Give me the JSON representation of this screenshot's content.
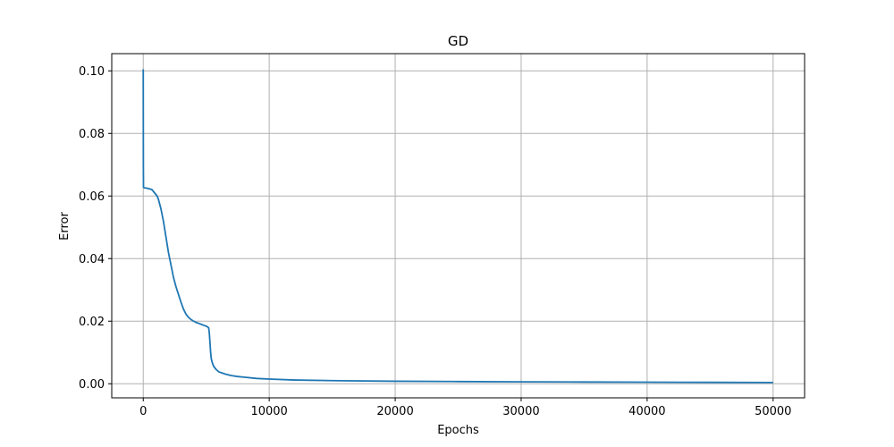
{
  "chart_data": {
    "type": "line",
    "title": "GD",
    "xlabel": "Epochs",
    "ylabel": "Error",
    "xlim": [
      -2500,
      52500
    ],
    "ylim": [
      -0.0045,
      0.1055
    ],
    "xticks": [
      0,
      10000,
      20000,
      30000,
      40000,
      50000
    ],
    "xtick_labels": [
      "0",
      "10000",
      "20000",
      "30000",
      "40000",
      "50000"
    ],
    "yticks": [
      0.0,
      0.02,
      0.04,
      0.06,
      0.08,
      0.1
    ],
    "ytick_labels": [
      "0.00",
      "0.02",
      "0.04",
      "0.06",
      "0.08",
      "0.10"
    ],
    "grid": true,
    "series": [
      {
        "color": "#1f77b4",
        "x": [
          0,
          5,
          10,
          20,
          50,
          100,
          300,
          500,
          700,
          900,
          1000,
          1100,
          1200,
          1400,
          1600,
          1800,
          2000,
          2200,
          2400,
          2600,
          2800,
          3000,
          3200,
          3400,
          3600,
          3800,
          4000,
          4200,
          4400,
          4600,
          4800,
          5000,
          5100,
          5200,
          5250,
          5300,
          5350,
          5400,
          5500,
          5600,
          5800,
          6000,
          6500,
          7000,
          7500,
          8000,
          9000,
          10000,
          12000,
          15000,
          20000,
          25000,
          30000,
          35000,
          40000,
          45000,
          50000
        ],
        "y": [
          0.1005,
          0.085,
          0.07,
          0.0628,
          0.0627,
          0.0626,
          0.0625,
          0.0623,
          0.062,
          0.061,
          0.0605,
          0.06,
          0.059,
          0.056,
          0.052,
          0.047,
          0.042,
          0.038,
          0.034,
          0.031,
          0.0285,
          0.026,
          0.0238,
          0.0222,
          0.0212,
          0.0205,
          0.02,
          0.0196,
          0.0193,
          0.019,
          0.0187,
          0.0184,
          0.0182,
          0.0178,
          0.016,
          0.013,
          0.01,
          0.008,
          0.0065,
          0.0055,
          0.0045,
          0.0038,
          0.0031,
          0.0026,
          0.0023,
          0.0021,
          0.0017,
          0.0015,
          0.0012,
          0.001,
          0.0008,
          0.0007,
          0.0006,
          0.00055,
          0.0005,
          0.00045,
          0.0004
        ]
      }
    ]
  }
}
